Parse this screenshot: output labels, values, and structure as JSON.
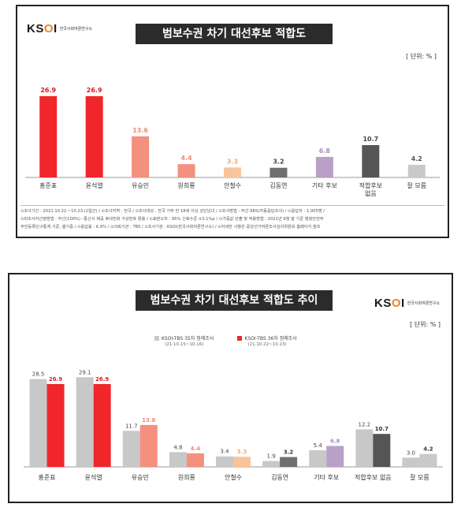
{
  "panel1": {
    "title": "범보수권 차기 대선후보 적합도",
    "logo_mark_a": "KS",
    "logo_mark_b": "O",
    "logo_mark_c": "I",
    "logo_sub": "한국사회여론연구소",
    "unit": "[ 단위: % ]",
    "footer_line1": "⊙조사기간 : 2021.10.22.~10.23.(2일간) / ⊙조사지역 : 전국 / ⊙조사대상 : 전국 거주 만 18세 이상 성인남녀 / ⊙조사방법 : 무선 ARS(자동응답조사) / ⊙응답자 : 1,005명 /",
    "footer_line2": "⊙피조사자선정방법 : 무선(100%) –통신사 제공 휴대전화 가상번호 활용 / ⊙표본오차 : 95% 신뢰수준 ±3.1%p / ⊙가중값 산출 및 적용방법 : 2021년 9월 말 기준 행정안전부",
    "footer_line3": "주민등록인구통계 기준, 셀가중 / ⊙응답률 : 6.9% / ⊙의뢰기관 : TBS / ⊙조사기관 : KSOI(한국사회여론연구소) / ⊙자세한 사항은 중앙선거여론조사심의위원회 홈페이지 참조"
  },
  "panel2": {
    "title": "범보수권 차기 대선후보 적합도 추이",
    "logo_mark_a": "KS",
    "logo_mark_b": "O",
    "logo_mark_c": "I",
    "logo_sub": "한국사회여론연구소",
    "unit": "[ 단위: % ]",
    "legend": [
      {
        "name": "KSOI-TBS 35차 정례조사",
        "period": "(21.10.15~10.16)"
      },
      {
        "name": "KSOI-TBS 36차 정례조사",
        "period": "(21.10.22~10.23)"
      }
    ]
  },
  "chart_data": [
    {
      "type": "bar",
      "title": "범보수권 차기 대선후보 적합도",
      "categories": [
        "홍준표",
        "윤석열",
        "유승민",
        "원희룡",
        "안철수",
        "김동연",
        "기타 후보",
        "적합후보\n없음",
        "잘 모름"
      ],
      "values": [
        26.9,
        26.9,
        13.6,
        4.4,
        3.3,
        3.2,
        6.8,
        10.7,
        4.2
      ],
      "value_labels": [
        "26.9",
        "26.9",
        "13.6",
        "4.4",
        "3.3",
        "3.2",
        "6.8",
        "10.7",
        "4.2"
      ],
      "colors": [
        "#f0262b",
        "#f0262b",
        "#f4907e",
        "#f4907e",
        "#f9c49a",
        "#6f6f6f",
        "#b9a0c6",
        "#555555",
        "#c9c9c9"
      ],
      "label_colors": [
        "#e0191f",
        "#e0191f",
        "#f08a78",
        "#f08a78",
        "#f5a86b",
        "#444444",
        "#a990b8",
        "#444444",
        "#555555"
      ],
      "ylim": [
        0,
        30
      ]
    },
    {
      "type": "bar",
      "title": "범보수권 차기 대선후보 적합도 추이",
      "categories": [
        "홍준표",
        "윤석열",
        "유승민",
        "원희룡",
        "안철수",
        "김동연",
        "기타 후보",
        "적합후보 없음",
        "잘 모름"
      ],
      "series": [
        {
          "name": "KSOI-TBS 35차 정례조사",
          "values": [
            28.5,
            29.1,
            11.7,
            4.8,
            3.4,
            1.9,
            5.4,
            12.2,
            3.0
          ],
          "color": "#c8c8c8"
        },
        {
          "name": "KSOI-TBS 36차 정례조사",
          "values": [
            26.9,
            26.9,
            13.6,
            4.4,
            3.3,
            3.2,
            6.8,
            10.7,
            4.2
          ],
          "colors": [
            "#f0262b",
            "#f0262b",
            "#f4907e",
            "#f4907e",
            "#f9c49a",
            "#6f6f6f",
            "#b9a0c6",
            "#555555",
            "#c9c9c9"
          ]
        }
      ],
      "ylim": [
        0,
        32
      ]
    }
  ]
}
